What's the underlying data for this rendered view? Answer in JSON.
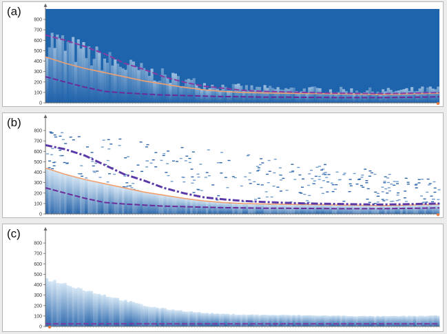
{
  "chart_data": [
    {
      "type": "heatmap",
      "panel_label": "(a)",
      "yticks": [
        0,
        100,
        200,
        300,
        400,
        500,
        600,
        700,
        800
      ],
      "ylim": [
        0,
        900
      ],
      "xlim": [
        0,
        100
      ],
      "background": "dense",
      "series": [
        {
          "role": "mean",
          "color": "#f0a070",
          "style": "solid",
          "x": [
            0,
            5,
            10,
            15,
            20,
            25,
            30,
            35,
            40,
            45,
            50,
            55,
            60,
            65,
            70,
            75,
            80,
            85,
            90,
            95,
            100
          ],
          "y": [
            440,
            380,
            330,
            290,
            250,
            210,
            180,
            150,
            125,
            110,
            100,
            95,
            92,
            90,
            88,
            85,
            83,
            80,
            82,
            88,
            92
          ]
        },
        {
          "role": "upper",
          "color": "#8a3aa0",
          "style": "dashed",
          "x": [
            0,
            5,
            10,
            15,
            20,
            25,
            30,
            35,
            40,
            45,
            50,
            55,
            60,
            65,
            70,
            75,
            80,
            85,
            90,
            95,
            100
          ],
          "y": [
            650,
            600,
            540,
            470,
            380,
            320,
            250,
            200,
            160,
            140,
            120,
            110,
            105,
            100,
            95,
            92,
            90,
            88,
            90,
            95,
            98
          ]
        },
        {
          "role": "lower",
          "color": "#6a2a9a",
          "style": "dashed",
          "x": [
            0,
            5,
            10,
            15,
            20,
            25,
            30,
            35,
            40,
            45,
            50,
            55,
            60,
            65,
            70,
            75,
            80,
            85,
            90,
            95,
            100
          ],
          "y": [
            250,
            200,
            150,
            110,
            95,
            85,
            75,
            70,
            65,
            60,
            58,
            55,
            55,
            53,
            52,
            50,
            50,
            50,
            52,
            55,
            58
          ]
        }
      ]
    },
    {
      "type": "heatmap",
      "panel_label": "(b)",
      "yticks": [
        0,
        100,
        200,
        300,
        400,
        500,
        600,
        700,
        800
      ],
      "ylim": [
        0,
        900
      ],
      "xlim": [
        0,
        100
      ],
      "background": "sparse",
      "series": [
        {
          "role": "mean",
          "color": "#f0a070",
          "style": "solid",
          "x": [
            0,
            5,
            10,
            15,
            20,
            25,
            30,
            35,
            40,
            45,
            50,
            55,
            60,
            65,
            70,
            75,
            80,
            85,
            90,
            95,
            100
          ],
          "y": [
            440,
            380,
            330,
            290,
            250,
            210,
            180,
            150,
            125,
            110,
            100,
            95,
            92,
            90,
            88,
            85,
            83,
            80,
            82,
            88,
            92
          ]
        },
        {
          "role": "upper",
          "color": "#5a38a8",
          "style": "dashed-thick",
          "x": [
            0,
            5,
            10,
            15,
            20,
            25,
            30,
            35,
            40,
            45,
            50,
            55,
            60,
            65,
            70,
            75,
            80,
            85,
            90,
            95,
            100
          ],
          "y": [
            660,
            620,
            560,
            470,
            380,
            320,
            250,
            200,
            160,
            140,
            125,
            115,
            108,
            102,
            98,
            95,
            92,
            90,
            92,
            96,
            100
          ]
        },
        {
          "role": "lower",
          "color": "#6a2a9a",
          "style": "dashed",
          "x": [
            0,
            5,
            10,
            15,
            20,
            25,
            30,
            35,
            40,
            45,
            50,
            55,
            60,
            65,
            70,
            75,
            80,
            85,
            90,
            95,
            100
          ],
          "y": [
            250,
            200,
            150,
            110,
            95,
            85,
            75,
            70,
            65,
            60,
            58,
            55,
            55,
            53,
            52,
            50,
            50,
            50,
            52,
            55,
            58
          ]
        }
      ]
    },
    {
      "type": "area",
      "panel_label": "(c)",
      "yticks": [
        0,
        100,
        200,
        300,
        400,
        500,
        600,
        700,
        800
      ],
      "ylim": [
        0,
        900
      ],
      "xlim": [
        0,
        100
      ],
      "series": [
        {
          "role": "envelope",
          "color": "#2f7bc0",
          "style": "area",
          "x": [
            0,
            5,
            10,
            15,
            20,
            25,
            30,
            35,
            40,
            45,
            50,
            55,
            60,
            65,
            70,
            75,
            80,
            85,
            90,
            95,
            100
          ],
          "y": [
            460,
            410,
            350,
            300,
            250,
            200,
            170,
            150,
            130,
            120,
            115,
            112,
            110,
            108,
            105,
            103,
            100,
            98,
            100,
            102,
            105
          ]
        },
        {
          "role": "baseline",
          "color": "#7a3aa0",
          "style": "dashed",
          "x": [
            0,
            100
          ],
          "y": [
            25,
            25
          ]
        }
      ]
    }
  ]
}
